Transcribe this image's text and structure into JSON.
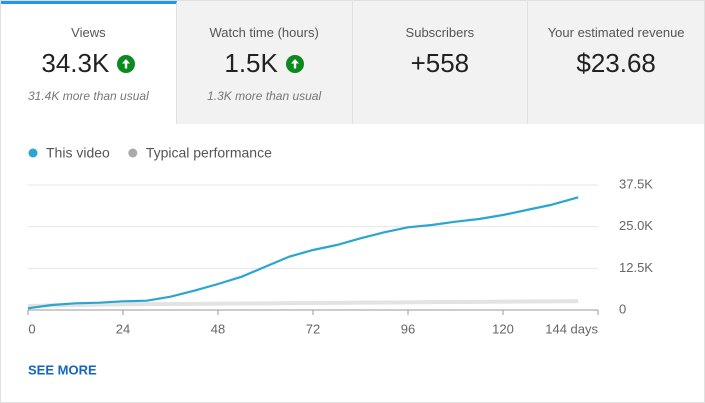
{
  "tiles": [
    {
      "label": "Views",
      "value": "34.3K",
      "note": "31.4K more than usual",
      "trend": "up",
      "selected": true
    },
    {
      "label": "Watch time (hours)",
      "value": "1.5K",
      "note": "1.3K more than usual",
      "trend": "up",
      "selected": false
    },
    {
      "label": "Subscribers",
      "value": "+558",
      "selected": false
    },
    {
      "label": "Your estimated revenue",
      "value": "$23.68",
      "selected": false
    }
  ],
  "chart_data": {
    "type": "line",
    "x": [
      0,
      6,
      12,
      18,
      24,
      30,
      36,
      42,
      48,
      54,
      60,
      66,
      72,
      78,
      84,
      90,
      96,
      102,
      108,
      114,
      120,
      126,
      132,
      139
    ],
    "series": [
      {
        "name": "This video",
        "color": "#2ba6cf",
        "values": [
          500,
          1500,
          2000,
          2200,
          2600,
          2800,
          4000,
          5800,
          7800,
          10000,
          13000,
          16000,
          18000,
          19500,
          21500,
          23300,
          24800,
          25500,
          26500,
          27300,
          28500,
          30000,
          31500,
          33800
        ]
      },
      {
        "name": "Typical performance",
        "color": "#e3e3e3",
        "values": [
          1200,
          1400,
          1500,
          1600,
          1700,
          1750,
          1800,
          1850,
          1900,
          1950,
          2000,
          2050,
          2100,
          2150,
          2200,
          2250,
          2300,
          2350,
          2400,
          2450,
          2500,
          2550,
          2600,
          2650
        ]
      }
    ],
    "xlim": [
      0,
      144
    ],
    "xticks": [
      0,
      24,
      48,
      72,
      96,
      120,
      {
        "value": 144,
        "label": "144 days"
      }
    ],
    "ylim": [
      0,
      37500
    ],
    "yticks": [
      0,
      {
        "value": 12500,
        "label": "12.5K"
      },
      {
        "value": 25000,
        "label": "25.0K"
      },
      {
        "value": 37500,
        "label": "37.5K"
      }
    ],
    "grid": true,
    "link": "SEE MORE"
  }
}
